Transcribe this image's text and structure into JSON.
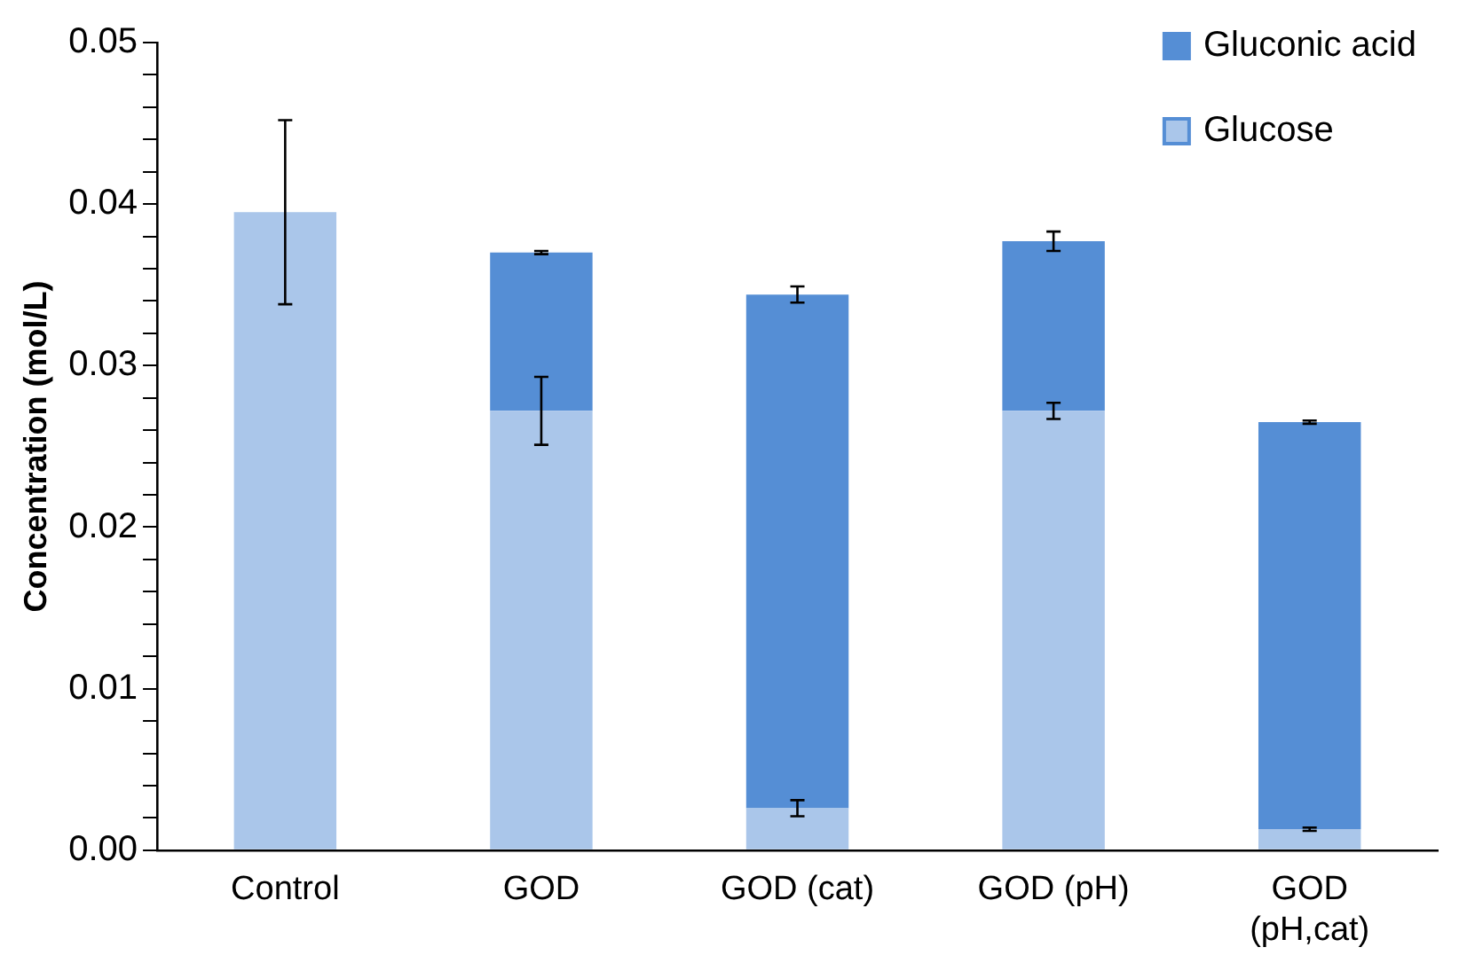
{
  "chart_data": {
    "type": "bar",
    "stacked": true,
    "ylabel": "Concentration (mol/L)",
    "categories": [
      "Control",
      "GOD",
      "GOD (cat)",
      "GOD (pH)",
      "GOD (pH,cat)"
    ],
    "series": [
      {
        "name": "Glucose",
        "color": "#aac6ea",
        "values": [
          0.0395,
          0.0272,
          0.0026,
          0.0272,
          0.0013
        ],
        "errors": [
          0.0057,
          0.0021,
          0.0005,
          0.0005,
          0.0001
        ]
      },
      {
        "name": "Gluconic acid",
        "color": "#558ed5",
        "values": [
          0,
          0.0098,
          0.0318,
          0.0105,
          0.0252
        ],
        "errors": [
          null,
          0.0001,
          0.0005,
          0.0006,
          0.0001
        ]
      }
    ],
    "ylim": [
      0,
      0.05
    ],
    "yticks": [
      {
        "value": 0,
        "label": "0.00"
      },
      {
        "value": 0.002,
        "label": null
      },
      {
        "value": 0.004,
        "label": null
      },
      {
        "value": 0.006,
        "label": null
      },
      {
        "value": 0.008,
        "label": null
      },
      {
        "value": 0.01,
        "label": "0.01"
      },
      {
        "value": 0.012,
        "label": null
      },
      {
        "value": 0.014,
        "label": null
      },
      {
        "value": 0.016,
        "label": null
      },
      {
        "value": 0.018,
        "label": null
      },
      {
        "value": 0.02,
        "label": "0.02"
      },
      {
        "value": 0.022,
        "label": null
      },
      {
        "value": 0.024,
        "label": null
      },
      {
        "value": 0.026,
        "label": null
      },
      {
        "value": 0.028,
        "label": null
      },
      {
        "value": 0.03,
        "label": "0.03"
      },
      {
        "value": 0.032,
        "label": null
      },
      {
        "value": 0.034,
        "label": null
      },
      {
        "value": 0.036,
        "label": null
      },
      {
        "value": 0.038,
        "label": null
      },
      {
        "value": 0.04,
        "label": "0.04"
      },
      {
        "value": 0.042,
        "label": null
      },
      {
        "value": 0.044,
        "label": null
      },
      {
        "value": 0.046,
        "label": null
      },
      {
        "value": 0.048,
        "label": null
      },
      {
        "value": 0.05,
        "label": "0.05"
      }
    ],
    "grid": false,
    "legend": "top right"
  }
}
